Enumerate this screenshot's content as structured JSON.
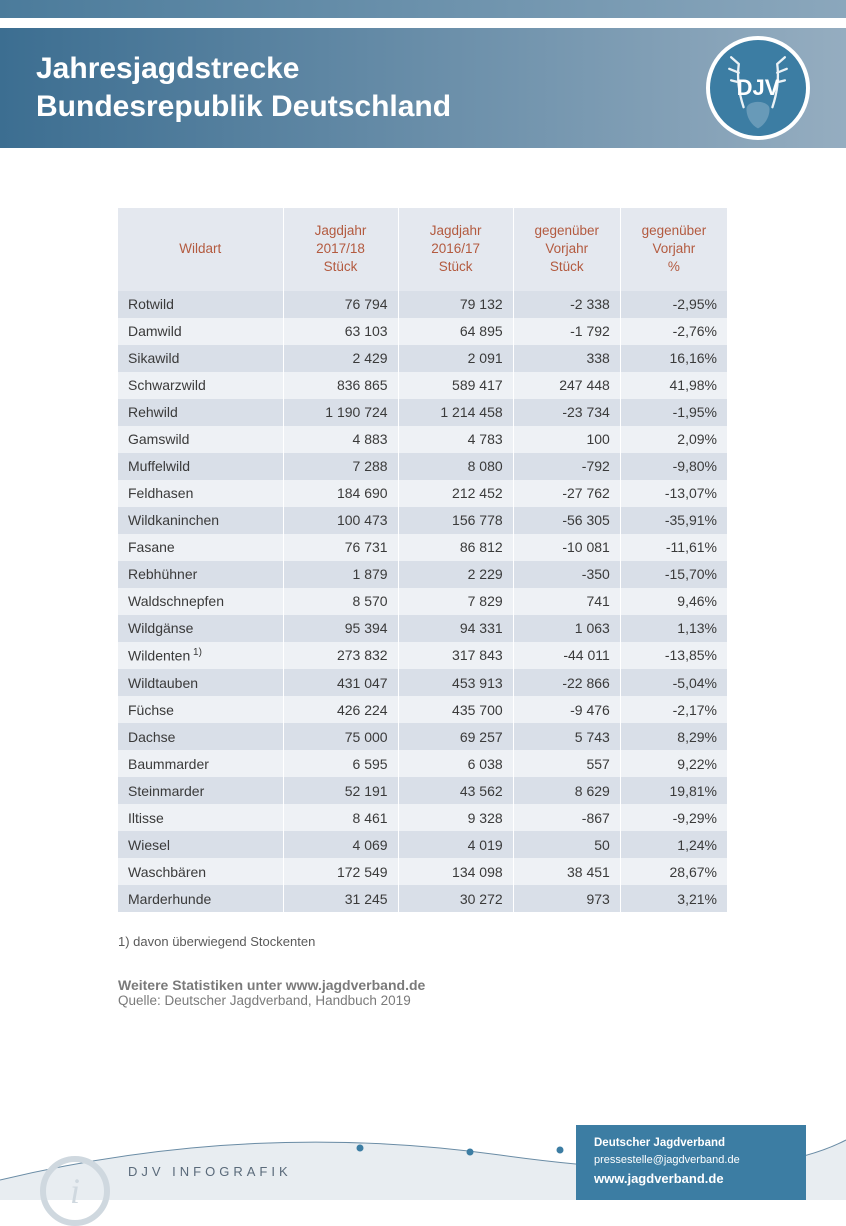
{
  "header": {
    "title_line1": "Jahresjagdstrecke",
    "title_line2": "Bundesrepublik Deutschland",
    "logo_text": "DJV"
  },
  "table": {
    "columns": [
      "Wildart",
      "Jagdjahr\n2017/18\nStück",
      "Jagdjahr\n2016/17\nStück",
      "gegenüber\nVorjahr\nStück",
      "gegenüber\nVorjahr\n%"
    ],
    "rows": [
      {
        "name": "Rotwild",
        "y1718": "76 794",
        "y1617": "79 132",
        "diff": "-2 338",
        "pct": "-2,95%"
      },
      {
        "name": "Damwild",
        "y1718": "63 103",
        "y1617": "64 895",
        "diff": "-1 792",
        "pct": "-2,76%"
      },
      {
        "name": "Sikawild",
        "y1718": "2 429",
        "y1617": "2 091",
        "diff": "338",
        "pct": "16,16%"
      },
      {
        "name": "Schwarzwild",
        "y1718": "836 865",
        "y1617": "589 417",
        "diff": "247 448",
        "pct": "41,98%"
      },
      {
        "name": "Rehwild",
        "y1718": "1 190 724",
        "y1617": "1 214 458",
        "diff": "-23 734",
        "pct": "-1,95%"
      },
      {
        "name": "Gamswild",
        "y1718": "4 883",
        "y1617": "4 783",
        "diff": "100",
        "pct": "2,09%"
      },
      {
        "name": "Muffelwild",
        "y1718": "7 288",
        "y1617": "8 080",
        "diff": "-792",
        "pct": "-9,80%"
      },
      {
        "name": "Feldhasen",
        "y1718": "184 690",
        "y1617": "212 452",
        "diff": "-27 762",
        "pct": "-13,07%"
      },
      {
        "name": "Wildkaninchen",
        "y1718": "100 473",
        "y1617": "156 778",
        "diff": "-56 305",
        "pct": "-35,91%"
      },
      {
        "name": "Fasane",
        "y1718": "76 731",
        "y1617": "86 812",
        "diff": "-10 081",
        "pct": "-11,61%"
      },
      {
        "name": "Rebhühner",
        "y1718": "1 879",
        "y1617": "2 229",
        "diff": "-350",
        "pct": "-15,70%"
      },
      {
        "name": "Waldschnepfen",
        "y1718": "8 570",
        "y1617": "7 829",
        "diff": "741",
        "pct": "9,46%"
      },
      {
        "name": "Wildgänse",
        "y1718": "95 394",
        "y1617": "94 331",
        "diff": "1 063",
        "pct": "1,13%"
      },
      {
        "name": "Wildenten",
        "note": "1)",
        "y1718": "273 832",
        "y1617": "317 843",
        "diff": "-44 011",
        "pct": "-13,85%"
      },
      {
        "name": "Wildtauben",
        "y1718": "431 047",
        "y1617": "453 913",
        "diff": "-22 866",
        "pct": "-5,04%"
      },
      {
        "name": "Füchse",
        "y1718": "426 224",
        "y1617": "435 700",
        "diff": "-9 476",
        "pct": "-2,17%"
      },
      {
        "name": "Dachse",
        "y1718": "75 000",
        "y1617": "69 257",
        "diff": "5 743",
        "pct": "8,29%"
      },
      {
        "name": "Baummarder",
        "y1718": "6 595",
        "y1617": "6 038",
        "diff": "557",
        "pct": "9,22%"
      },
      {
        "name": "Steinmarder",
        "y1718": "52 191",
        "y1617": "43 562",
        "diff": "8 629",
        "pct": "19,81%"
      },
      {
        "name": "Iltisse",
        "y1718": "8 461",
        "y1617": "9 328",
        "diff": "-867",
        "pct": "-9,29%"
      },
      {
        "name": "Wiesel",
        "y1718": "4 069",
        "y1617": "4 019",
        "diff": "50",
        "pct": "1,24%"
      },
      {
        "name": "Waschbären",
        "y1718": "172 549",
        "y1617": "134 098",
        "diff": "38 451",
        "pct": "28,67%"
      },
      {
        "name": "Marderhunde",
        "y1718": "31 245",
        "y1617": "30 272",
        "diff": "973",
        "pct": "3,21%"
      }
    ]
  },
  "footnote": "1) davon überwiegend Stockenten",
  "more_stats": {
    "line1": "Weitere Statistiken unter www.jagdverband.de",
    "source": "Quelle: Deutscher Jagdverband, Handbuch 2019"
  },
  "footer": {
    "brand": "DJV INFOGRAFIK",
    "org": "Deutscher Jagdverband",
    "email": "pressestelle@jagdverband.de",
    "site": "www.jagdverband.de"
  },
  "colors": {
    "header_grad_from": "#3c6e91",
    "header_grad_to": "#95adc0",
    "accent": "#3c7da3",
    "th_text": "#b35a3f",
    "row_odd": "#d9dfe8",
    "row_even": "#eef1f5"
  }
}
